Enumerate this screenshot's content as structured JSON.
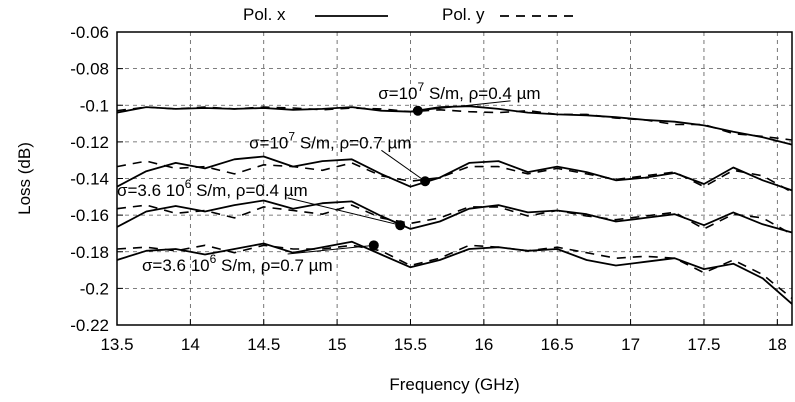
{
  "chart_data": {
    "type": "line",
    "title": "",
    "xlabel": "Frequency (GHz)",
    "ylabel": "Loss (dB)",
    "xlim": [
      13.5,
      18.1
    ],
    "ylim": [
      -0.22,
      -0.06
    ],
    "x_ticks": [
      "13.5",
      "14",
      "14.5",
      "15",
      "15.5",
      "16",
      "16.5",
      "17",
      "17.5",
      "18"
    ],
    "y_ticks": [
      "-0.06",
      "-0.08",
      "-0.1",
      "-0.12",
      "-0.14",
      "-0.16",
      "-0.18",
      "-0.2",
      "-0.22"
    ],
    "grid": true,
    "legend": {
      "placement": "top",
      "entries": [
        {
          "name": "Pol. x",
          "style": "solid"
        },
        {
          "name": "Pol. y",
          "style": "dashed"
        }
      ]
    },
    "groups": [
      {
        "label_main": "σ=10",
        "label_exp": "7",
        "label_rest": " S/m, ρ=0.4 µm",
        "marker": [
          15.55,
          -0.103
        ],
        "label_anchor": [
          15.28,
          -0.0965
        ],
        "series": [
          {
            "name": "Pol. x",
            "style": "solid",
            "points": [
              [
                13.5,
                -0.104
              ],
              [
                13.7,
                -0.101
              ],
              [
                13.9,
                -0.102
              ],
              [
                14.1,
                -0.1015
              ],
              [
                14.3,
                -0.102
              ],
              [
                14.5,
                -0.1015
              ],
              [
                14.7,
                -0.1025
              ],
              [
                14.9,
                -0.102
              ],
              [
                15.1,
                -0.101
              ],
              [
                15.3,
                -0.103
              ],
              [
                15.5,
                -0.1035
              ],
              [
                15.7,
                -0.101
              ],
              [
                15.9,
                -0.1005
              ],
              [
                16.1,
                -0.102
              ],
              [
                16.3,
                -0.104
              ],
              [
                16.5,
                -0.105
              ],
              [
                16.7,
                -0.1055
              ],
              [
                16.9,
                -0.1065
              ],
              [
                17.1,
                -0.108
              ],
              [
                17.3,
                -0.109
              ],
              [
                17.5,
                -0.111
              ],
              [
                17.7,
                -0.1145
              ],
              [
                17.9,
                -0.1175
              ],
              [
                18.1,
                -0.1215
              ]
            ]
          },
          {
            "name": "Pol. y",
            "style": "dashed",
            "points": [
              [
                13.5,
                -0.103
              ],
              [
                13.7,
                -0.101
              ],
              [
                13.9,
                -0.102
              ],
              [
                14.1,
                -0.101
              ],
              [
                14.3,
                -0.102
              ],
              [
                14.5,
                -0.101
              ],
              [
                14.7,
                -0.1015
              ],
              [
                14.9,
                -0.1025
              ],
              [
                15.1,
                -0.1015
              ],
              [
                15.3,
                -0.102
              ],
              [
                15.5,
                -0.1035
              ],
              [
                15.7,
                -0.1025
              ],
              [
                15.9,
                -0.1035
              ],
              [
                16.1,
                -0.104
              ],
              [
                16.3,
                -0.103
              ],
              [
                16.5,
                -0.105
              ],
              [
                16.7,
                -0.105
              ],
              [
                16.9,
                -0.107
              ],
              [
                17.1,
                -0.108
              ],
              [
                17.3,
                -0.1105
              ],
              [
                17.5,
                -0.1105
              ],
              [
                17.7,
                -0.1155
              ],
              [
                17.9,
                -0.117
              ],
              [
                18.1,
                -0.119
              ]
            ]
          }
        ]
      },
      {
        "label_main": "σ=10",
        "label_exp": "7",
        "label_rest": " S/m, ρ=0.7 µm",
        "marker": [
          15.6,
          -0.1415
        ],
        "label_anchor": [
          14.4,
          -0.1235
        ],
        "series": [
          {
            "name": "Pol. x",
            "style": "solid",
            "points": [
              [
                13.5,
                -0.1445
              ],
              [
                13.7,
                -0.136
              ],
              [
                13.9,
                -0.1315
              ],
              [
                14.1,
                -0.1345
              ],
              [
                14.3,
                -0.1295
              ],
              [
                14.5,
                -0.128
              ],
              [
                14.7,
                -0.1335
              ],
              [
                14.9,
                -0.1305
              ],
              [
                15.1,
                -0.1295
              ],
              [
                15.3,
                -0.1375
              ],
              [
                15.5,
                -0.1445
              ],
              [
                15.7,
                -0.1395
              ],
              [
                15.9,
                -0.1315
              ],
              [
                16.1,
                -0.1305
              ],
              [
                16.3,
                -0.1365
              ],
              [
                16.5,
                -0.1335
              ],
              [
                16.7,
                -0.1365
              ],
              [
                16.9,
                -0.141
              ],
              [
                17.1,
                -0.1395
              ],
              [
                17.3,
                -0.137
              ],
              [
                17.5,
                -0.143
              ],
              [
                17.7,
                -0.134
              ],
              [
                17.9,
                -0.141
              ],
              [
                18.1,
                -0.1465
              ]
            ]
          },
          {
            "name": "Pol. y",
            "style": "dashed",
            "points": [
              [
                13.5,
                -0.1335
              ],
              [
                13.7,
                -0.1305
              ],
              [
                13.9,
                -0.1345
              ],
              [
                14.1,
                -0.1335
              ],
              [
                14.3,
                -0.1375
              ],
              [
                14.5,
                -0.1325
              ],
              [
                14.7,
                -0.1335
              ],
              [
                14.9,
                -0.1355
              ],
              [
                15.1,
                -0.1315
              ],
              [
                15.3,
                -0.1385
              ],
              [
                15.5,
                -0.1415
              ],
              [
                15.7,
                -0.1395
              ],
              [
                15.9,
                -0.1335
              ],
              [
                16.1,
                -0.1335
              ],
              [
                16.3,
                -0.1375
              ],
              [
                16.5,
                -0.1345
              ],
              [
                16.7,
                -0.1375
              ],
              [
                16.9,
                -0.1405
              ],
              [
                17.1,
                -0.1385
              ],
              [
                17.3,
                -0.1365
              ],
              [
                17.5,
                -0.1445
              ],
              [
                17.7,
                -0.1355
              ],
              [
                17.9,
                -0.1385
              ],
              [
                18.1,
                -0.1475
              ]
            ]
          }
        ]
      },
      {
        "label_main": "σ=3.6 10",
        "label_exp": "6",
        "label_rest": " S/m, ρ=0.4 µm",
        "marker": [
          15.43,
          -0.1655
        ],
        "label_anchor": [
          13.5,
          -0.1495
        ],
        "series": [
          {
            "name": "Pol. x",
            "style": "solid",
            "points": [
              [
                13.5,
                -0.1665
              ],
              [
                13.7,
                -0.158
              ],
              [
                13.9,
                -0.155
              ],
              [
                14.1,
                -0.158
              ],
              [
                14.3,
                -0.1545
              ],
              [
                14.5,
                -0.152
              ],
              [
                14.7,
                -0.1565
              ],
              [
                14.9,
                -0.1535
              ],
              [
                15.1,
                -0.1525
              ],
              [
                15.3,
                -0.1605
              ],
              [
                15.5,
                -0.1675
              ],
              [
                15.7,
                -0.1635
              ],
              [
                15.9,
                -0.1565
              ],
              [
                16.1,
                -0.1545
              ],
              [
                16.3,
                -0.1585
              ],
              [
                16.5,
                -0.1575
              ],
              [
                16.7,
                -0.1595
              ],
              [
                16.9,
                -0.1635
              ],
              [
                17.1,
                -0.1615
              ],
              [
                17.3,
                -0.1595
              ],
              [
                17.5,
                -0.1655
              ],
              [
                17.7,
                -0.1585
              ],
              [
                17.9,
                -0.165
              ],
              [
                18.1,
                -0.1695
              ]
            ]
          },
          {
            "name": "Pol. y",
            "style": "dashed",
            "points": [
              [
                13.5,
                -0.1565
              ],
              [
                13.7,
                -0.1545
              ],
              [
                13.9,
                -0.159
              ],
              [
                14.1,
                -0.1575
              ],
              [
                14.3,
                -0.1615
              ],
              [
                14.5,
                -0.1555
              ],
              [
                14.7,
                -0.1575
              ],
              [
                14.9,
                -0.1595
              ],
              [
                15.1,
                -0.1545
              ],
              [
                15.3,
                -0.1615
              ],
              [
                15.5,
                -0.1645
              ],
              [
                15.7,
                -0.1615
              ],
              [
                15.9,
                -0.1555
              ],
              [
                16.1,
                -0.1555
              ],
              [
                16.3,
                -0.1605
              ],
              [
                16.5,
                -0.1575
              ],
              [
                16.7,
                -0.1605
              ],
              [
                16.9,
                -0.1625
              ],
              [
                17.1,
                -0.1605
              ],
              [
                17.3,
                -0.1585
              ],
              [
                17.5,
                -0.1675
              ],
              [
                17.7,
                -0.1595
              ],
              [
                17.9,
                -0.1615
              ],
              [
                18.1,
                -0.1705
              ]
            ]
          }
        ]
      },
      {
        "label_main": "σ=3.6 10",
        "label_exp": "6",
        "label_rest": " S/m, ρ=0.7 µm",
        "marker": [
          15.25,
          -0.1765
        ],
        "label_anchor": [
          13.67,
          -0.1905
        ],
        "series": [
          {
            "name": "Pol. x",
            "style": "solid",
            "points": [
              [
                13.5,
                -0.1845
              ],
              [
                13.7,
                -0.1795
              ],
              [
                13.9,
                -0.1785
              ],
              [
                14.1,
                -0.1815
              ],
              [
                14.3,
                -0.1785
              ],
              [
                14.5,
                -0.1755
              ],
              [
                14.7,
                -0.1805
              ],
              [
                14.9,
                -0.1775
              ],
              [
                15.1,
                -0.1745
              ],
              [
                15.3,
                -0.1815
              ],
              [
                15.5,
                -0.1885
              ],
              [
                15.7,
                -0.1845
              ],
              [
                15.9,
                -0.1785
              ],
              [
                16.1,
                -0.1775
              ],
              [
                16.3,
                -0.1795
              ],
              [
                16.5,
                -0.1785
              ],
              [
                16.7,
                -0.1845
              ],
              [
                16.9,
                -0.1875
              ],
              [
                17.1,
                -0.1855
              ],
              [
                17.3,
                -0.1835
              ],
              [
                17.5,
                -0.1895
              ],
              [
                17.7,
                -0.1865
              ],
              [
                17.9,
                -0.1945
              ],
              [
                18.1,
                -0.2085
              ]
            ]
          },
          {
            "name": "Pol. y",
            "style": "dashed",
            "points": [
              [
                13.5,
                -0.1785
              ],
              [
                13.7,
                -0.1775
              ],
              [
                13.9,
                -0.1795
              ],
              [
                14.1,
                -0.1765
              ],
              [
                14.3,
                -0.1805
              ],
              [
                14.5,
                -0.1765
              ],
              [
                14.7,
                -0.1785
              ],
              [
                14.9,
                -0.1785
              ],
              [
                15.1,
                -0.1765
              ],
              [
                15.3,
                -0.1795
              ],
              [
                15.5,
                -0.1875
              ],
              [
                15.7,
                -0.1835
              ],
              [
                15.9,
                -0.1765
              ],
              [
                16.1,
                -0.1775
              ],
              [
                16.3,
                -0.1795
              ],
              [
                16.5,
                -0.1775
              ],
              [
                16.7,
                -0.1805
              ],
              [
                16.9,
                -0.1835
              ],
              [
                17.1,
                -0.1825
              ],
              [
                17.3,
                -0.1835
              ],
              [
                17.5,
                -0.1915
              ],
              [
                17.7,
                -0.1845
              ],
              [
                17.9,
                -0.1925
              ],
              [
                18.1,
                -0.2055
              ]
            ]
          }
        ]
      }
    ]
  }
}
